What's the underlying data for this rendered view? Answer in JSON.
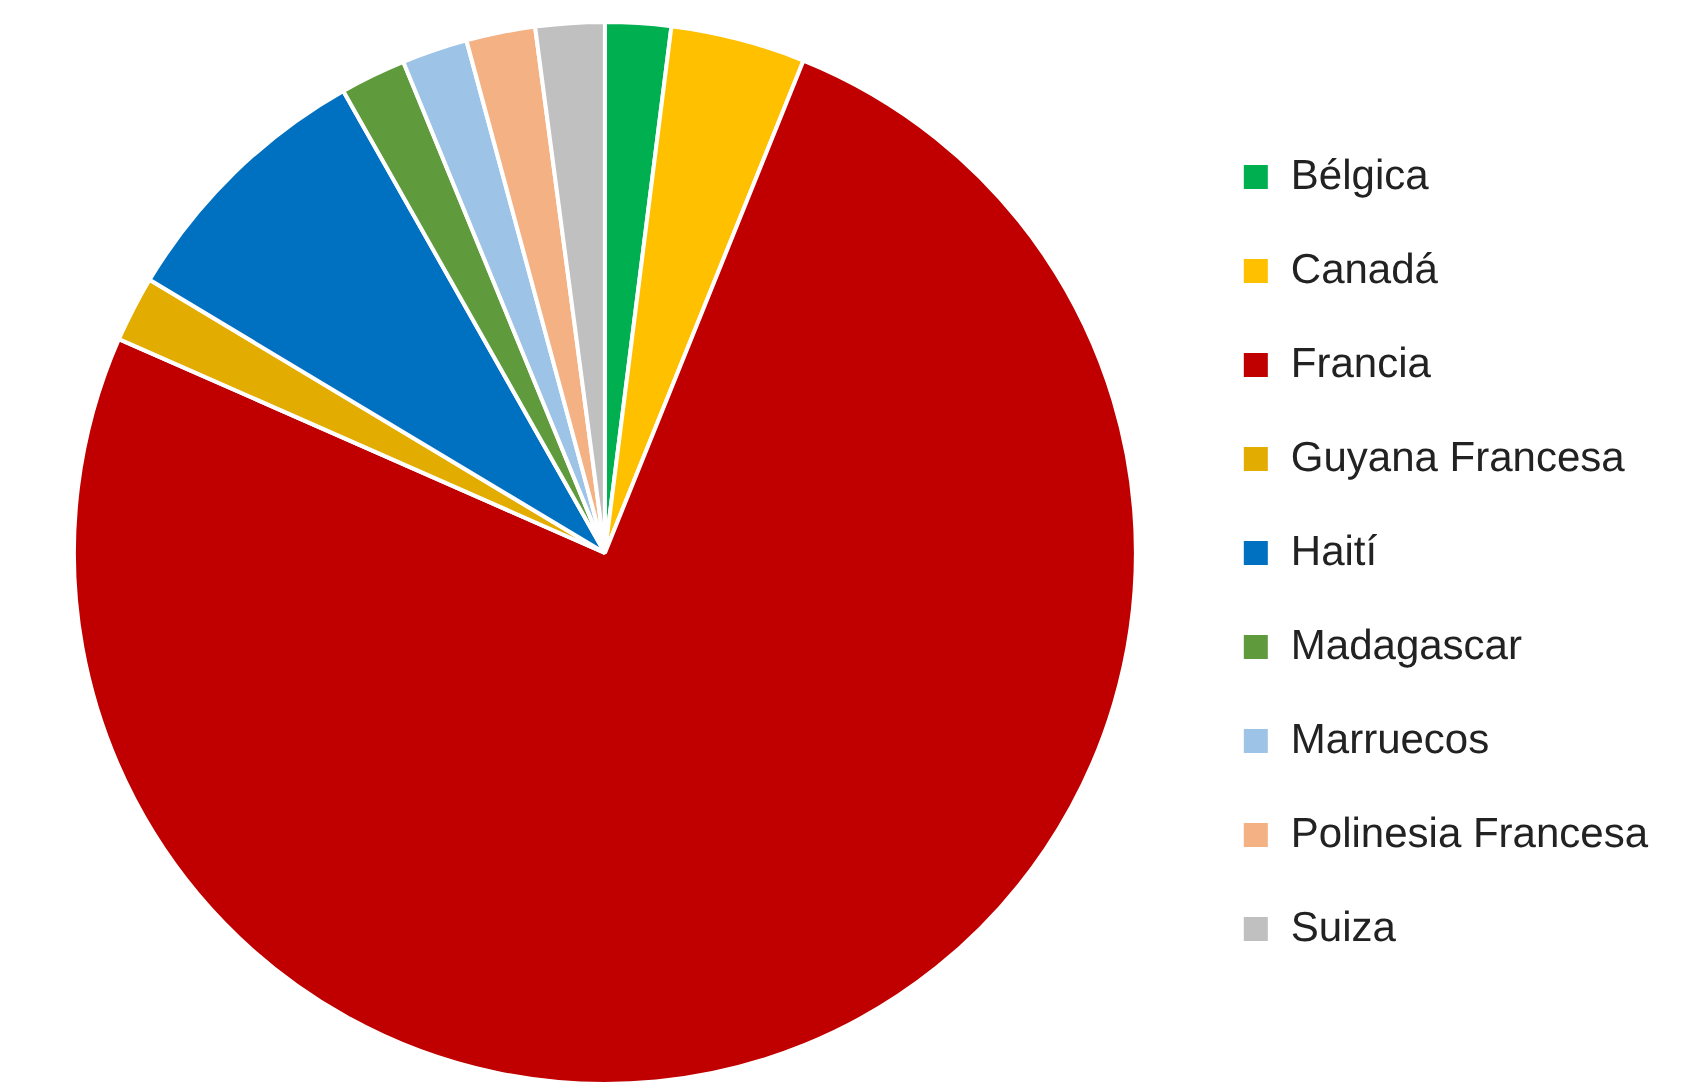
{
  "chart_data": {
    "type": "pie",
    "categories": [
      "Bélgica",
      "Canadá",
      "Francia",
      "Guyana Francesa",
      "Haití",
      "Madagascar",
      "Marruecos",
      "Polinesia Francesa",
      "Suiza"
    ],
    "values": [
      2.0,
      4.1,
      75.5,
      2.0,
      8.2,
      2.0,
      2.0,
      2.1,
      2.1
    ],
    "colors": [
      "#00b050",
      "#ffc000",
      "#c00000",
      "#e3ac00",
      "#0070c0",
      "#5f9b3d",
      "#9dc3e6",
      "#f4b183",
      "#c0c0c0"
    ],
    "legend": "right"
  }
}
